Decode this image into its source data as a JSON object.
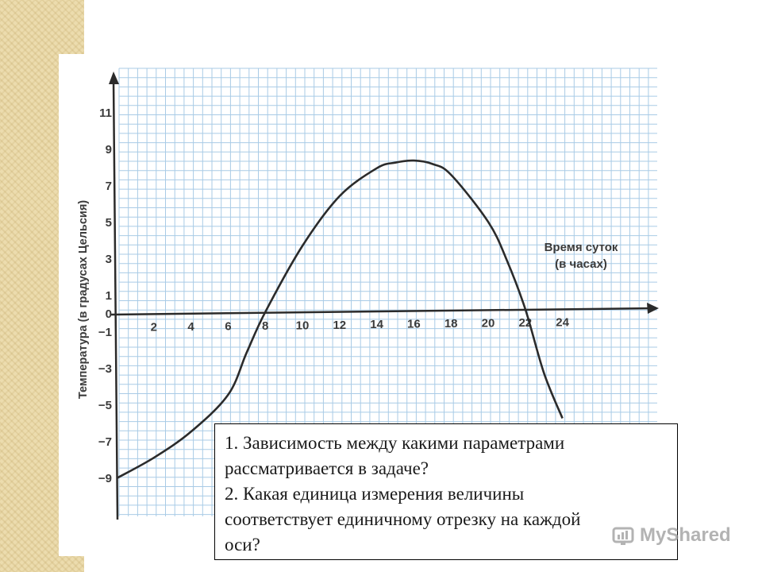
{
  "chart_data": {
    "type": "line",
    "xlabel": "Время суток (в часах)",
    "ylabel": "Температура (в градусах Цельсия)",
    "x_ticks": [
      "2",
      "4",
      "6",
      "8",
      "10",
      "12",
      "14",
      "16",
      "18",
      "20",
      "22",
      "24"
    ],
    "y_ticks": [
      "11",
      "9",
      "7",
      "5",
      "3",
      "1",
      "0",
      "−1",
      "−3",
      "−5",
      "−7",
      "−9"
    ],
    "xlim": [
      0,
      27
    ],
    "ylim": [
      -11,
      12
    ],
    "grid": true,
    "series": [
      {
        "x": [
          0,
          2,
          4,
          6,
          7,
          8,
          10,
          12,
          14,
          15,
          16,
          17,
          18,
          20,
          21,
          22,
          23,
          24
        ],
        "y": [
          -9,
          -7.9,
          -6.5,
          -4.5,
          -2.2,
          0,
          3.6,
          6.3,
          7.8,
          8.1,
          8.2,
          8.0,
          7.4,
          4.8,
          2.7,
          0,
          -3.5,
          -6
        ]
      }
    ],
    "line_color": "#2b2b2b",
    "grid_color": "#a9cbe6"
  },
  "questions": {
    "line1": "1. Зависимость между какими параметрами",
    "line2": "рассматривается в задаче?",
    "line3": "2. Какая единица измерения величины",
    "line4": "соответствует единичному отрезку на каждой",
    "line5": "оси?"
  },
  "watermark": {
    "text": "MyShared"
  }
}
